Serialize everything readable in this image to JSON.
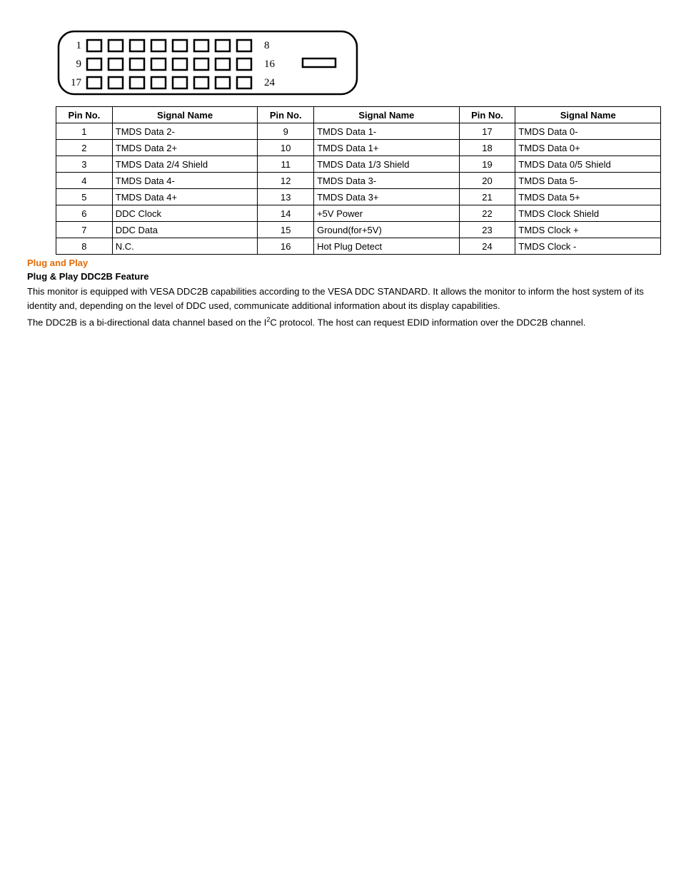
{
  "connector": {
    "outer_stroke": "#000000",
    "inner_stroke": "#000000",
    "row_labels_left": [
      "1",
      "9",
      "17"
    ],
    "row_labels_right": [
      "8",
      "16",
      "24"
    ],
    "pins_per_row": 8,
    "rows": 3
  },
  "table": {
    "headers": [
      "Pin No.",
      "Signal Name",
      "Pin No.",
      "Signal Name",
      "Pin No.",
      "Signal Name"
    ],
    "rows": [
      [
        "1",
        "TMDS Data 2-",
        "9",
        "TMDS Data 1-",
        "17",
        "TMDS Data 0-"
      ],
      [
        "2",
        "TMDS Data 2+",
        "10",
        "TMDS Data 1+",
        "18",
        "TMDS Data 0+"
      ],
      [
        "3",
        "TMDS Data 2/4 Shield",
        "11",
        "TMDS Data 1/3 Shield",
        "19",
        "TMDS Data 0/5 Shield"
      ],
      [
        "4",
        "TMDS Data 4-",
        "12",
        "TMDS Data 3-",
        "20",
        "TMDS Data 5-"
      ],
      [
        "5",
        "TMDS Data 4+",
        "13",
        "TMDS Data 3+",
        "21",
        "TMDS Data 5+"
      ],
      [
        "6",
        "DDC Clock",
        "14",
        "+5V Power",
        "22",
        "TMDS Clock Shield"
      ],
      [
        "7",
        "DDC Data",
        "15",
        "Ground(for+5V)",
        "23",
        "TMDS Clock +"
      ],
      [
        "8",
        "N.C.",
        "16",
        "Hot Plug Detect",
        "24",
        "TMDS Clock -"
      ]
    ]
  },
  "text": {
    "section_title": "Plug and Play",
    "subsection_title": "Plug & Play DDC2B Feature",
    "para1": "This monitor is equipped with VESA DDC2B capabilities according to the VESA DDC STANDARD. It allows the monitor to inform the host system of its identity and, depending on the level of DDC used, communicate additional information about its display capabilities.",
    "para2_before": "The DDC2B is a bi-directional data channel based on the I",
    "para2_sup": "2",
    "para2_after": "C protocol. The host can request EDID information over the DDC2B channel."
  },
  "colors": {
    "accent": "#e36c09",
    "text": "#000000",
    "background": "#ffffff",
    "border": "#000000"
  }
}
